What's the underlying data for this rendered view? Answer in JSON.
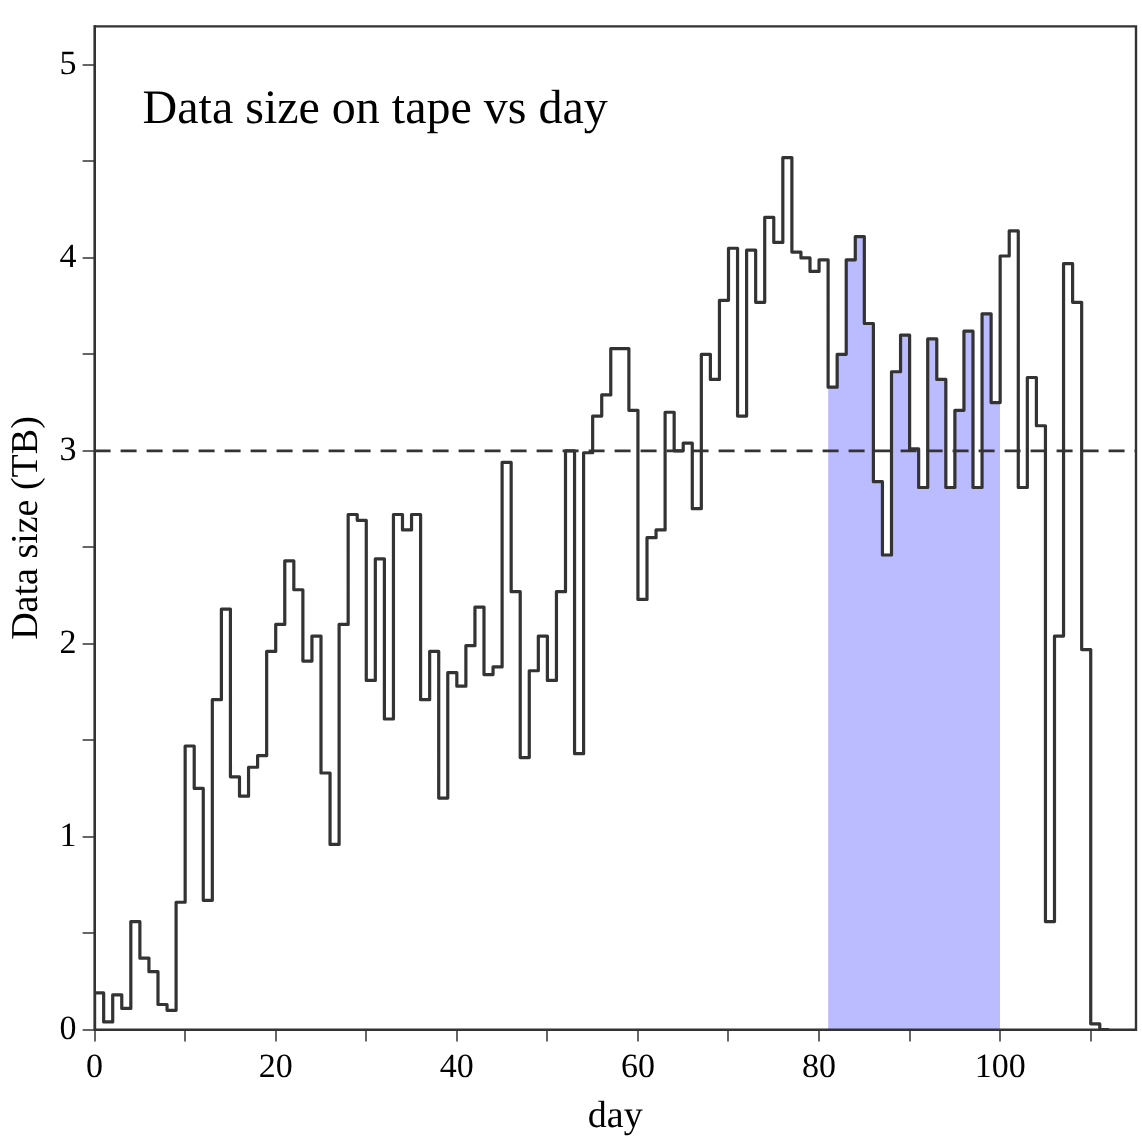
{
  "chart_data": {
    "type": "step",
    "title": "Data size on tape vs day",
    "xlabel": "day",
    "ylabel": "Data size (TB)",
    "xlim": [
      0,
      115
    ],
    "xticks": [
      0,
      {
        "value": 10,
        "label": null
      },
      20,
      {
        "value": 30,
        "label": null
      },
      40,
      {
        "value": 50,
        "label": null
      },
      60,
      {
        "value": 70,
        "label": null
      },
      80,
      {
        "value": 90,
        "label": null
      },
      100,
      {
        "value": 110,
        "label": null
      }
    ],
    "ylim": [
      0,
      5.2
    ],
    "yticks": [
      0,
      {
        "value": 0.5,
        "label": null
      },
      1,
      {
        "value": 1.5,
        "label": null
      },
      2,
      {
        "value": 2.5,
        "label": null
      },
      3,
      {
        "value": 3.5,
        "label": null
      },
      4,
      {
        "value": 4.5,
        "label": null
      },
      5
    ],
    "grid": false,
    "legend": false,
    "ref_lines": [
      {
        "axis": "y",
        "value": 3,
        "color": "#333333",
        "line_style": "dashed"
      }
    ],
    "series": [
      {
        "type": "area",
        "color": "#bbbbff",
        "x": [
          81,
          82,
          83,
          84,
          85,
          86,
          87,
          88,
          89,
          90,
          91,
          92,
          93,
          94,
          95,
          96,
          97,
          98,
          99,
          100
        ],
        "values": [
          3.99,
          3.33,
          3.5,
          3.99,
          4.11,
          3.66,
          2.84,
          2.46,
          3.41,
          3.6,
          3.01,
          2.81,
          3.58,
          3.37,
          2.81,
          3.21,
          3.62,
          2.81,
          3.71,
          3.25
        ]
      },
      {
        "color": "#333333",
        "x": [
          0,
          1,
          2,
          3,
          4,
          5,
          6,
          7,
          8,
          9,
          10,
          11,
          12,
          13,
          14,
          15,
          16,
          17,
          18,
          19,
          20,
          21,
          22,
          23,
          24,
          25,
          26,
          27,
          28,
          29,
          30,
          31,
          32,
          33,
          34,
          35,
          36,
          37,
          38,
          39,
          40,
          41,
          42,
          43,
          44,
          45,
          46,
          47,
          48,
          49,
          50,
          51,
          52,
          53,
          54,
          55,
          56,
          57,
          58,
          59,
          60,
          61,
          62,
          63,
          64,
          65,
          66,
          67,
          68,
          69,
          70,
          71,
          72,
          73,
          74,
          75,
          76,
          77,
          78,
          79,
          80,
          81,
          82,
          83,
          84,
          85,
          86,
          87,
          88,
          89,
          90,
          91,
          92,
          93,
          94,
          95,
          96,
          97,
          98,
          99,
          100,
          101,
          102,
          103,
          104,
          105,
          106,
          107,
          108,
          109,
          110,
          111,
          112
        ],
        "values": [
          0,
          0.19,
          0.04,
          0.18,
          0.11,
          0.56,
          0.37,
          0.3,
          0.13,
          0.1,
          0.66,
          1.47,
          1.25,
          0.67,
          1.71,
          2.18,
          1.31,
          1.21,
          1.36,
          1.42,
          1.96,
          2.1,
          2.43,
          2.28,
          1.91,
          2.04,
          1.33,
          0.96,
          2.1,
          2.67,
          2.64,
          1.81,
          2.44,
          1.61,
          2.67,
          2.59,
          2.67,
          1.71,
          1.96,
          1.2,
          1.85,
          1.78,
          1.99,
          2.19,
          1.84,
          1.88,
          2.94,
          2.27,
          1.41,
          1.86,
          2.04,
          1.81,
          2.27,
          3.0,
          1.43,
          2.99,
          3.18,
          3.29,
          3.53,
          3.53,
          3.21,
          2.23,
          2.55,
          2.59,
          3.2,
          3.0,
          3.04,
          2.7,
          3.5,
          3.37,
          3.78,
          4.05,
          3.18,
          4.04,
          3.77,
          4.21,
          4.08,
          4.52,
          4.03,
          4.0,
          3.93,
          3.99,
          3.33,
          3.5,
          3.99,
          4.11,
          3.66,
          2.84,
          2.46,
          3.41,
          3.6,
          3.01,
          2.81,
          3.58,
          3.37,
          2.81,
          3.21,
          3.62,
          2.81,
          3.71,
          3.25,
          4.01,
          4.14,
          2.81,
          3.38,
          3.13,
          0.56,
          2.04,
          3.97,
          3.77,
          1.97,
          0.03,
          0
        ]
      }
    ]
  }
}
